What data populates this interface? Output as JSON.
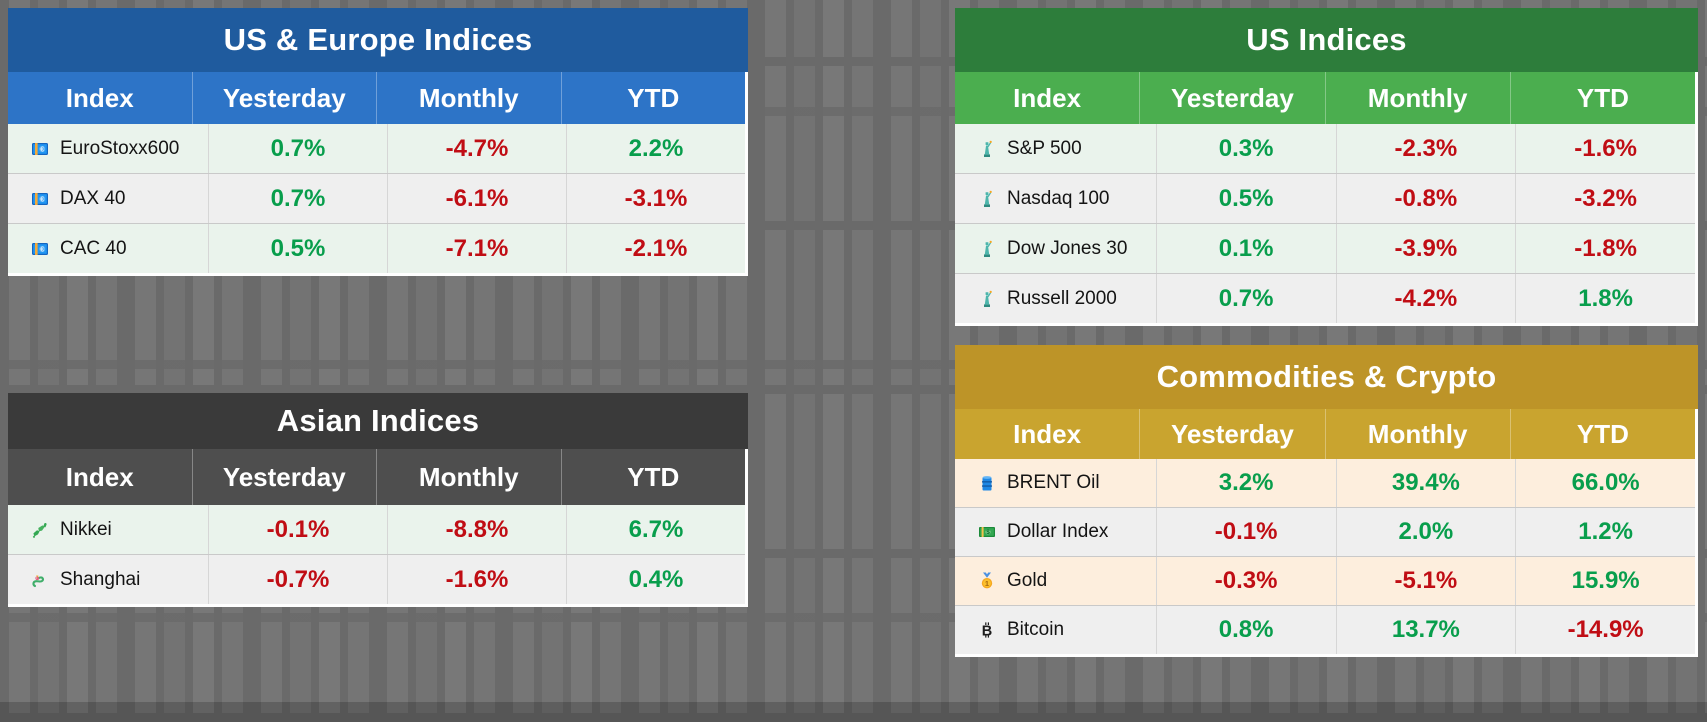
{
  "palette": {
    "positive": "#089e4c",
    "negative": "#c00d14"
  },
  "chart_data": [
    {
      "type": "table",
      "title": "US & Europe Indices",
      "columns": [
        "Index",
        "Yesterday",
        "Monthly",
        "YTD"
      ],
      "colors": {
        "title_bg": "#1f5b9e",
        "header_bg": "#2d74c7",
        "row_odd_bg": "#eaf3ec",
        "row_even_bg": "#efefef"
      },
      "rows": [
        {
          "icon": "euro-banknote-icon",
          "name": "EuroStoxx600",
          "yesterday": "0.7%",
          "monthly": "-4.7%",
          "ytd": "2.2%"
        },
        {
          "icon": "euro-banknote-icon",
          "name": "DAX 40",
          "yesterday": "0.7%",
          "monthly": "-6.1%",
          "ytd": "-3.1%"
        },
        {
          "icon": "euro-banknote-icon",
          "name": "CAC 40",
          "yesterday": "0.5%",
          "monthly": "-7.1%",
          "ytd": "-2.1%"
        }
      ]
    },
    {
      "type": "table",
      "title": "US Indices",
      "columns": [
        "Index",
        "Yesterday",
        "Monthly",
        "YTD"
      ],
      "colors": {
        "title_bg": "#2d7d3b",
        "header_bg": "#4bae4f",
        "row_odd_bg": "#eaf3ec",
        "row_even_bg": "#efefef"
      },
      "rows": [
        {
          "icon": "statue-of-liberty-icon",
          "name": "S&P 500",
          "yesterday": "0.3%",
          "monthly": "-2.3%",
          "ytd": "-1.6%"
        },
        {
          "icon": "statue-of-liberty-icon",
          "name": "Nasdaq 100",
          "yesterday": "0.5%",
          "monthly": "-0.8%",
          "ytd": "-3.2%"
        },
        {
          "icon": "statue-of-liberty-icon",
          "name": "Dow Jones 30",
          "yesterday": "0.1%",
          "monthly": "-3.9%",
          "ytd": "-1.8%"
        },
        {
          "icon": "statue-of-liberty-icon",
          "name": "Russell 2000",
          "yesterday": "0.7%",
          "monthly": "-4.2%",
          "ytd": "1.8%"
        }
      ]
    },
    {
      "type": "table",
      "title": "Asian Indices",
      "columns": [
        "Index",
        "Yesterday",
        "Monthly",
        "YTD"
      ],
      "colors": {
        "title_bg": "#3a3a3a",
        "header_bg": "#4e4e4e",
        "row_odd_bg": "#eaf3ec",
        "row_even_bg": "#efefef"
      },
      "rows": [
        {
          "icon": "japan-map-icon",
          "name": "Nikkei",
          "yesterday": "-0.1%",
          "monthly": "-8.8%",
          "ytd": "6.7%"
        },
        {
          "icon": "dragon-icon",
          "name": "Shanghai",
          "yesterday": "-0.7%",
          "monthly": "-1.6%",
          "ytd": "0.4%"
        }
      ]
    },
    {
      "type": "table",
      "title": "Commodities & Crypto",
      "columns": [
        "Index",
        "Yesterday",
        "Monthly",
        "YTD"
      ],
      "colors": {
        "title_bg": "#bd9428",
        "header_bg": "#c9a42f",
        "row_odd_bg": "#fdeedd",
        "row_even_bg": "#efefef"
      },
      "rows": [
        {
          "icon": "oil-drum-icon",
          "name": "BRENT Oil",
          "yesterday": "3.2%",
          "monthly": "39.4%",
          "ytd": "66.0%"
        },
        {
          "icon": "dollar-banknote-icon",
          "name": "Dollar Index",
          "yesterday": "-0.1%",
          "monthly": "2.0%",
          "ytd": "1.2%"
        },
        {
          "icon": "gold-medal-icon",
          "name": "Gold",
          "yesterday": "-0.3%",
          "monthly": "-5.1%",
          "ytd": "15.9%"
        },
        {
          "icon": "bitcoin-icon",
          "name": "Bitcoin",
          "yesterday": "0.8%",
          "monthly": "13.7%",
          "ytd": "-14.9%"
        }
      ]
    }
  ]
}
